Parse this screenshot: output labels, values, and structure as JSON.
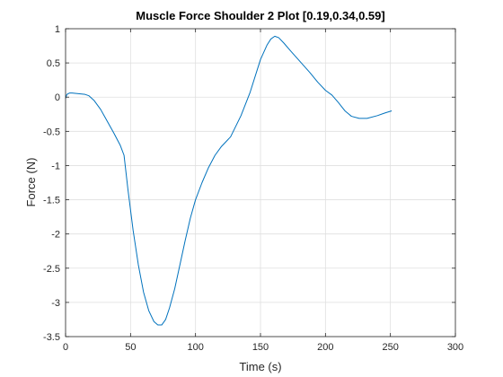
{
  "chart_data": {
    "type": "line",
    "title": "Muscle Force Shoulder 2 Plot [0.19,0.34,0.59]",
    "xlabel": "Time (s)",
    "ylabel": "Force (N)",
    "xlim": [
      0,
      300
    ],
    "ylim": [
      -3.5,
      1
    ],
    "xticks": [
      0,
      50,
      100,
      150,
      200,
      250,
      300
    ],
    "yticks": [
      1,
      0.5,
      0,
      -0.5,
      -1,
      -1.5,
      -2,
      -2.5,
      -3,
      -3.5
    ],
    "xtick_labels": [
      "0",
      "50",
      "100",
      "150",
      "200",
      "250",
      "300"
    ],
    "ytick_labels": [
      "1",
      "0.5",
      "0",
      "-0.5",
      "-1",
      "-1.5",
      "-2",
      "-2.5",
      "-3",
      "-3.5"
    ],
    "grid": true,
    "series": [
      {
        "color": "#0072BD",
        "x": [
          0,
          1,
          2,
          3,
          5,
          10,
          15,
          18,
          22,
          27,
          32,
          37,
          42,
          45,
          48,
          52,
          56,
          60,
          64,
          68,
          71,
          74,
          77,
          80,
          84,
          88,
          92,
          96,
          100,
          105,
          110,
          115,
          120,
          127,
          135,
          142,
          150,
          155,
          158,
          161,
          164,
          168,
          173,
          180,
          188,
          194,
          200,
          205,
          210,
          215,
          220,
          226,
          232,
          240,
          246,
          251
        ],
        "y": [
          -0.02,
          0.04,
          0.05,
          0.06,
          0.06,
          0.05,
          0.04,
          0.02,
          -0.05,
          -0.18,
          -0.35,
          -0.52,
          -0.7,
          -0.85,
          -1.35,
          -1.95,
          -2.45,
          -2.85,
          -3.12,
          -3.28,
          -3.33,
          -3.33,
          -3.25,
          -3.08,
          -2.8,
          -2.45,
          -2.1,
          -1.77,
          -1.5,
          -1.25,
          -1.03,
          -0.85,
          -0.72,
          -0.58,
          -0.27,
          0.07,
          0.55,
          0.76,
          0.85,
          0.89,
          0.87,
          0.79,
          0.68,
          0.53,
          0.36,
          0.22,
          0.1,
          0.03,
          -0.08,
          -0.2,
          -0.28,
          -0.31,
          -0.31,
          -0.27,
          -0.23,
          -0.2
        ]
      }
    ]
  }
}
